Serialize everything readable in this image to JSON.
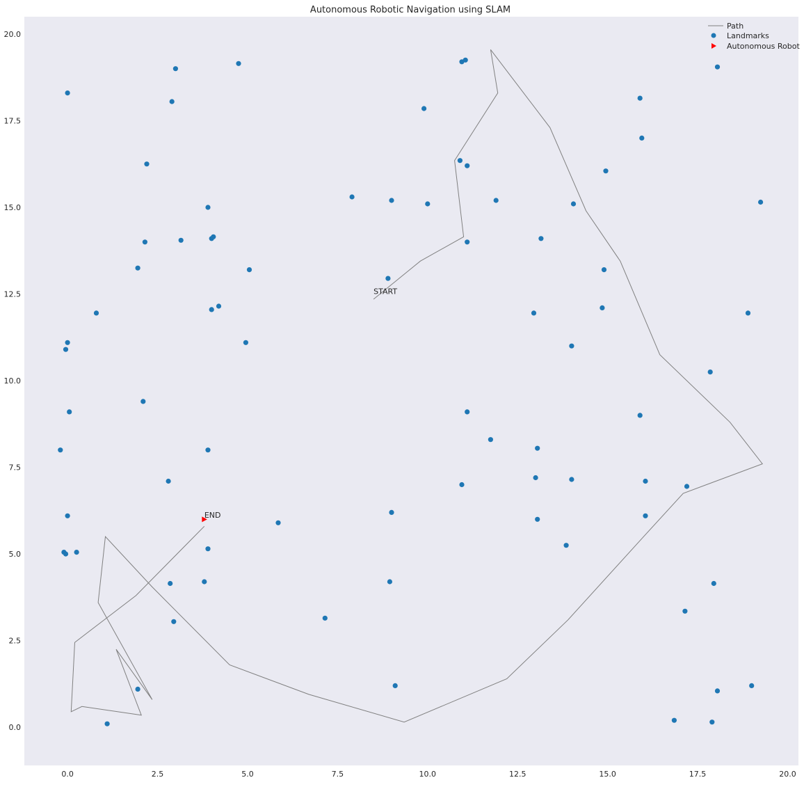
{
  "chart_data": {
    "type": "scatter",
    "title": "Autonomous Robotic Navigation using SLAM",
    "xlabel": "",
    "ylabel": "",
    "xlim": [
      -1.2,
      20.3
    ],
    "ylim": [
      -1.1,
      20.5
    ],
    "x_ticks": [
      0.0,
      2.5,
      5.0,
      7.5,
      10.0,
      12.5,
      15.0,
      17.5,
      20.0
    ],
    "x_tick_labels": [
      "0.0",
      "2.5",
      "5.0",
      "7.5",
      "10.0",
      "12.5",
      "15.0",
      "17.5",
      "20.0"
    ],
    "y_ticks": [
      0.0,
      2.5,
      5.0,
      7.5,
      10.0,
      12.5,
      15.0,
      17.5,
      20.0
    ],
    "y_tick_labels": [
      "0.0",
      "2.5",
      "5.0",
      "7.5",
      "10.0",
      "12.5",
      "15.0",
      "17.5",
      "20.0"
    ],
    "grid": false,
    "legend_position": "top-right",
    "background_color": "#eaeaf2",
    "series": [
      {
        "name": "Path",
        "kind": "line",
        "color": "#808080",
        "x": [
          8.5,
          9.8,
          11.0,
          10.75,
          11.95,
          11.75,
          13.4,
          14.4,
          15.35,
          16.45,
          18.4,
          19.3,
          17.1,
          16.0,
          13.9,
          12.2,
          9.35,
          6.7,
          4.5,
          2.35,
          1.05,
          0.85,
          2.35,
          1.35,
          2.05,
          0.4,
          0.1,
          0.2,
          1.9,
          3.8
        ],
        "y": [
          12.35,
          13.45,
          14.15,
          16.35,
          18.3,
          19.55,
          17.3,
          14.9,
          13.45,
          10.75,
          8.8,
          7.6,
          6.75,
          5.5,
          3.1,
          1.4,
          0.15,
          0.95,
          1.8,
          4.05,
          5.5,
          3.6,
          0.8,
          2.25,
          0.35,
          0.6,
          0.45,
          2.45,
          3.8,
          5.8
        ]
      },
      {
        "name": "Landmarks",
        "kind": "scatter",
        "color": "#1f77b4",
        "x": [
          0.0,
          3.0,
          4.75,
          2.9,
          2.2,
          3.9,
          2.15,
          3.15,
          4.0,
          4.05,
          1.95,
          5.05,
          0.8,
          4.0,
          4.2,
          0.0,
          -0.05,
          4.95,
          2.1,
          0.05,
          -0.2,
          3.9,
          2.8,
          0.0,
          -0.1,
          -0.05,
          0.25,
          3.9,
          2.85,
          3.8,
          2.95,
          1.95,
          1.1,
          10.95,
          11.05,
          9.9,
          10.9,
          11.1,
          7.9,
          9.0,
          10.0,
          11.9,
          11.1,
          8.9,
          14.05,
          13.15,
          15.9,
          15.95,
          14.95,
          18.05,
          19.25,
          14.9,
          14.85,
          12.95,
          14.0,
          18.9,
          17.85,
          11.1,
          11.75,
          13.05,
          15.9,
          10.95,
          13.0,
          14.0,
          16.05,
          17.2,
          9.0,
          13.05,
          16.05,
          5.85,
          13.85,
          8.95,
          7.15,
          17.15,
          17.95,
          9.1,
          19.0,
          18.05,
          16.85,
          17.9
        ],
        "y": [
          18.3,
          19.0,
          19.15,
          18.05,
          16.25,
          15.0,
          14.0,
          14.05,
          14.1,
          14.15,
          13.25,
          13.2,
          11.95,
          12.05,
          12.15,
          11.1,
          10.9,
          11.1,
          9.4,
          9.1,
          8.0,
          8.0,
          7.1,
          6.1,
          5.05,
          5.0,
          5.05,
          5.15,
          4.15,
          4.2,
          3.05,
          1.1,
          0.1,
          19.2,
          19.25,
          17.85,
          16.35,
          16.2,
          15.3,
          15.2,
          15.1,
          15.2,
          14.0,
          12.95,
          15.1,
          14.1,
          18.15,
          17.0,
          16.05,
          19.05,
          15.15,
          13.2,
          12.1,
          11.95,
          11.0,
          11.95,
          10.25,
          9.1,
          8.3,
          8.05,
          9.0,
          7.0,
          7.2,
          7.15,
          7.1,
          6.95,
          6.2,
          6.0,
          6.1,
          5.9,
          5.25,
          4.2,
          3.15,
          3.35,
          4.15,
          1.2,
          1.2,
          1.05,
          0.2,
          0.15
        ]
      },
      {
        "name": "Autonomous Robot",
        "kind": "marker",
        "color": "#ff0000",
        "marker": "triangle-right",
        "x": [
          3.8
        ],
        "y": [
          6.0
        ]
      }
    ],
    "annotations": [
      {
        "text": "START",
        "x": 8.5,
        "y": 12.5
      },
      {
        "text": "END",
        "x": 3.8,
        "y": 6.05
      }
    ]
  }
}
